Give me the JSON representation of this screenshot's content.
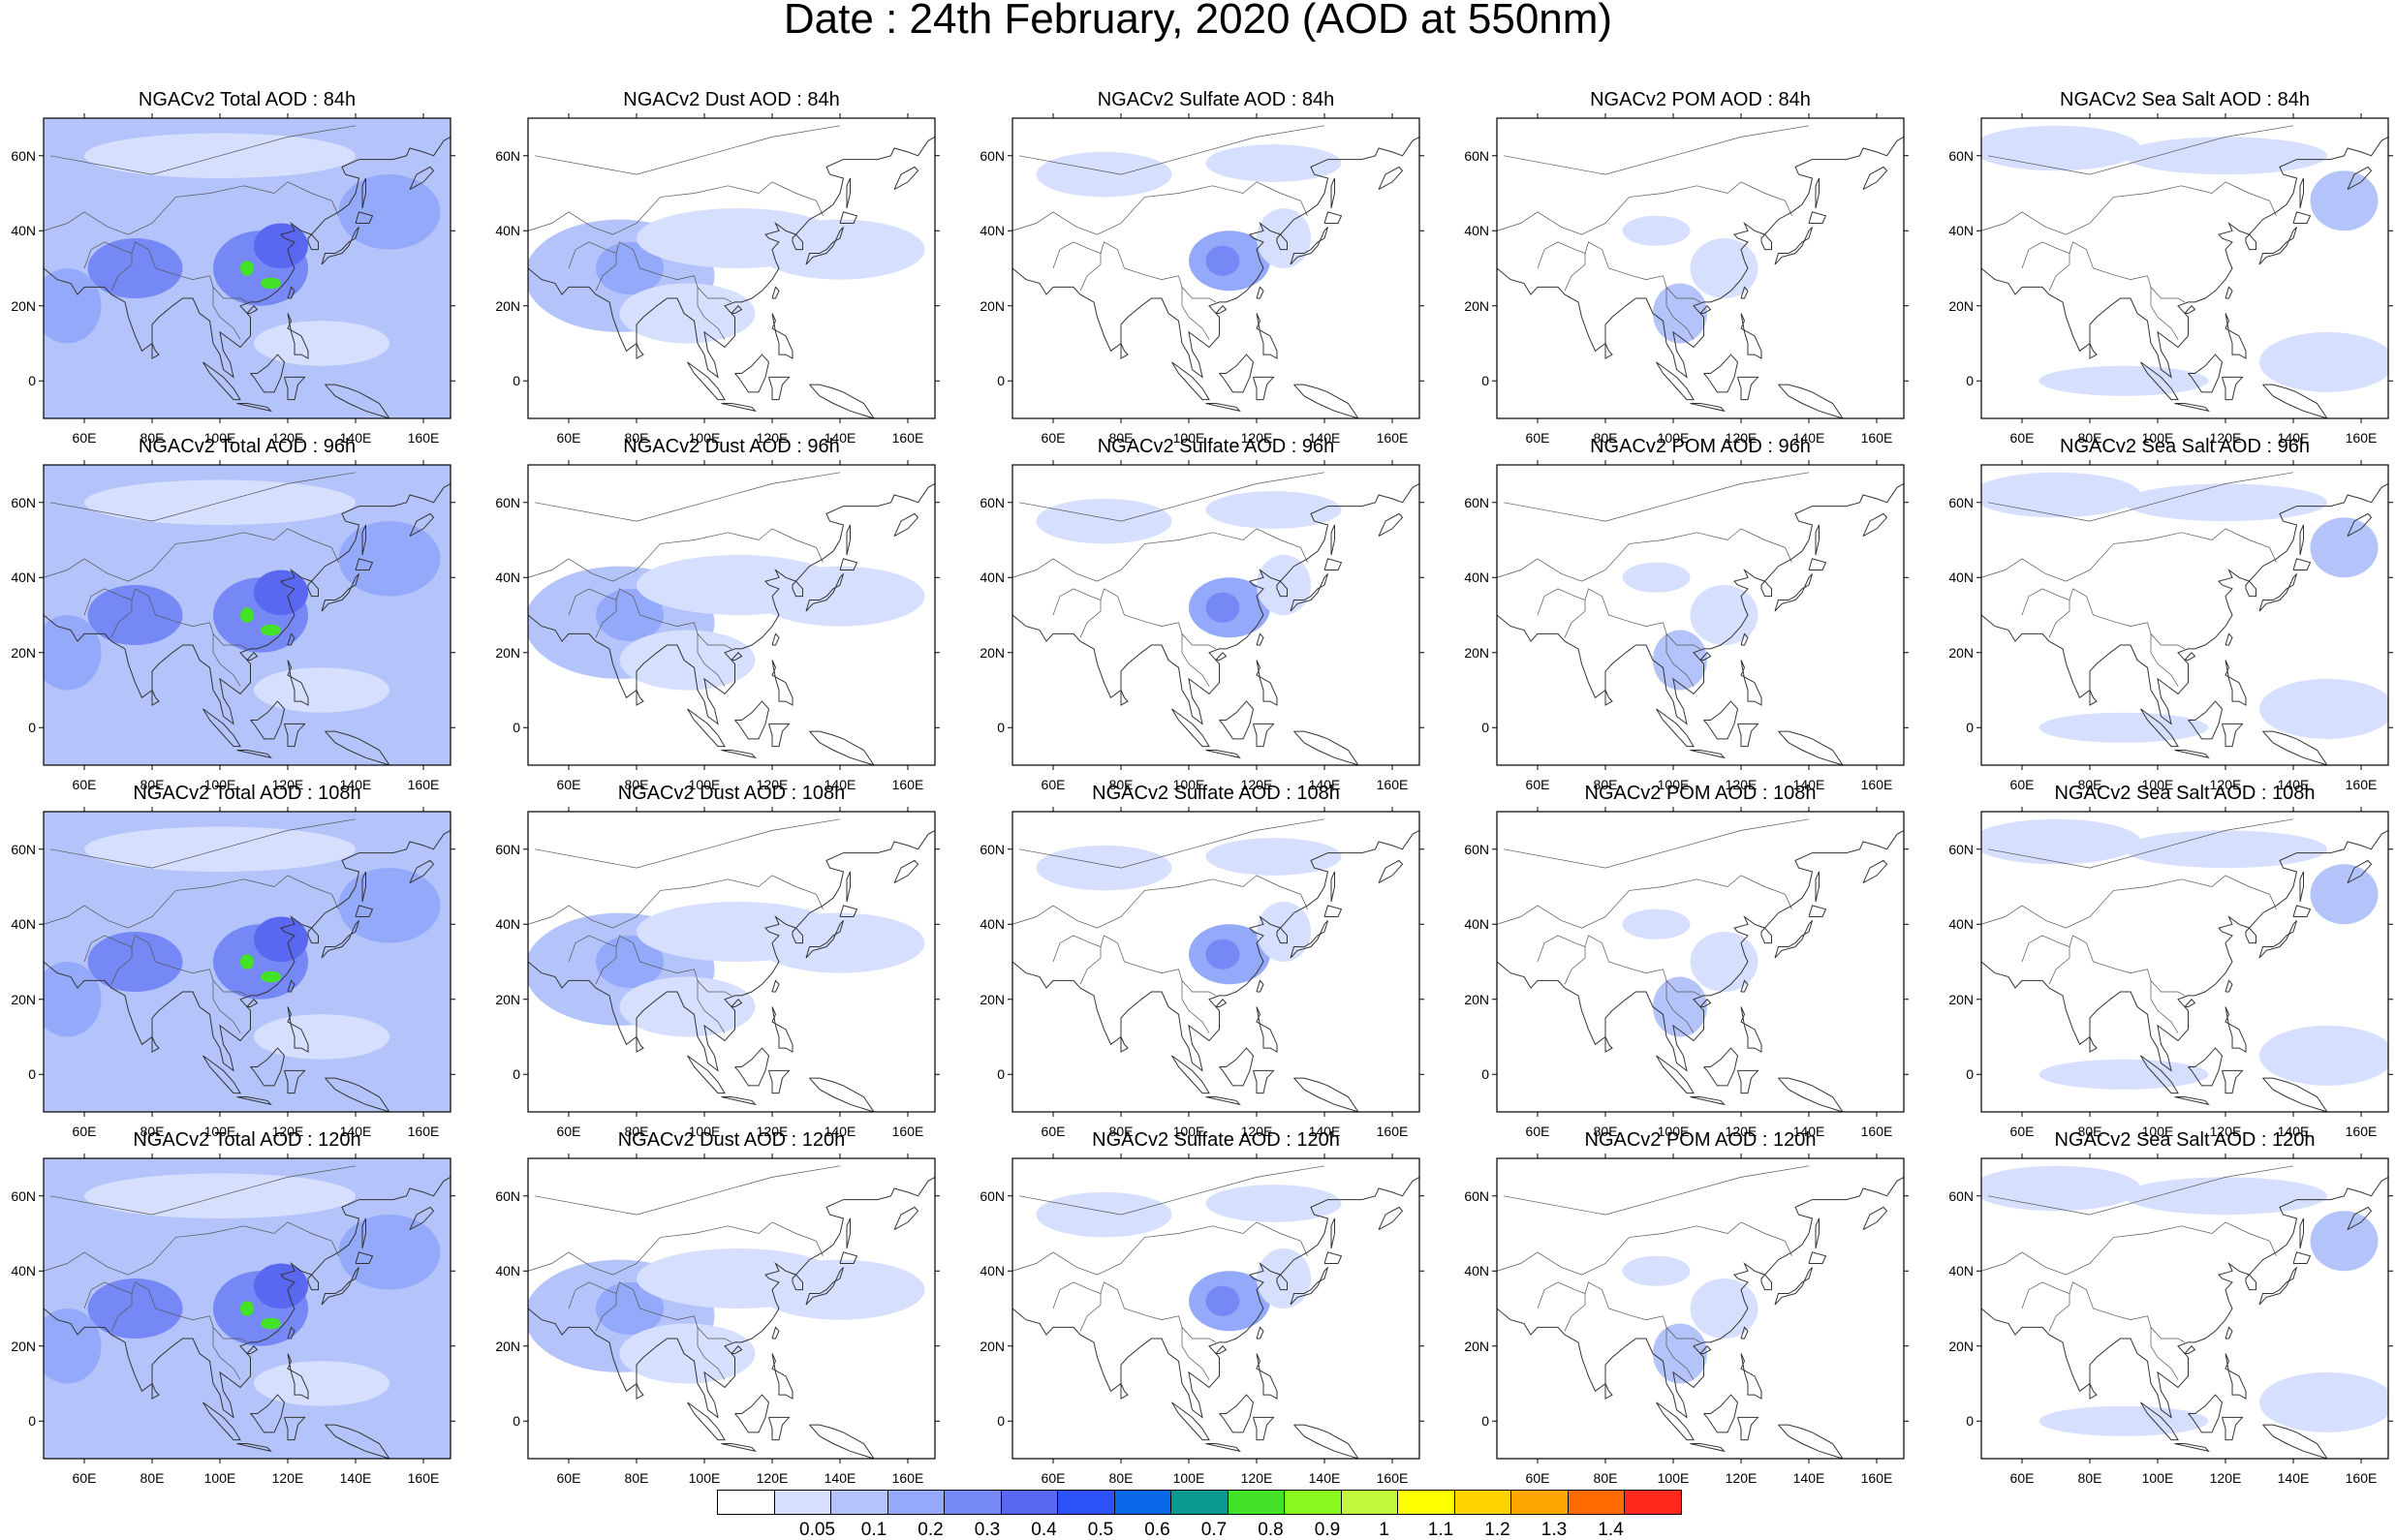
{
  "title": "Date : 24th February, 2020 (AOD at 550nm)",
  "map": {
    "lon_range": [
      48,
      168
    ],
    "lat_range": [
      -10,
      70
    ],
    "lon_ticks": [
      "60E",
      "80E",
      "100E",
      "120E",
      "140E",
      "160E"
    ],
    "lat_ticks": [
      "60N",
      "40N",
      "20N",
      "0"
    ]
  },
  "rows": [
    {
      "lead": "84h",
      "titles": [
        "NGACv2 Total AOD : 84h",
        "NGACv2 Dust AOD : 84h",
        "NGACv2 Sulfate AOD : 84h",
        "NGACv2 POM AOD : 84h",
        "NGACv2 Sea Salt AOD : 84h"
      ]
    },
    {
      "lead": "96h",
      "titles": [
        "NGACv2 Total AOD : 96h",
        "NGACv2 Dust AOD : 96h",
        "NGACv2 Sulfate AOD : 96h",
        "NGACv2 POM AOD : 96h",
        "NGACv2 Sea Salt AOD : 96h"
      ]
    },
    {
      "lead": "108h",
      "titles": [
        "NGACv2 Total AOD : 108h",
        "NGACv2 Dust AOD : 108h",
        "NGACv2 Sulfate AOD : 108h",
        "NGACv2 POM AOD : 108h",
        "NGACv2 Sea Salt AOD : 108h"
      ]
    },
    {
      "lead": "120h",
      "titles": [
        "NGACv2 Total AOD : 120h",
        "NGACv2 Dust AOD : 120h",
        "NGACv2 Sulfate AOD : 120h",
        "NGACv2 POM AOD : 120h",
        "NGACv2 Sea Salt  AOD : 120h"
      ]
    }
  ],
  "colorbar": {
    "colors": [
      "#ffffff",
      "#d6dffd",
      "#b4c4fb",
      "#94a9f9",
      "#7688f5",
      "#5a67f0",
      "#2d52f7",
      "#0968e8",
      "#0a9890",
      "#42e326",
      "#8af71f",
      "#c2f83c",
      "#ffff00",
      "#ffd200",
      "#ffa700",
      "#ff6b00",
      "#ff2a1d"
    ],
    "labels": [
      "0.05",
      "0.1",
      "0.2",
      "0.3",
      "0.4",
      "0.5",
      "0.6",
      "0.7",
      "0.8",
      "0.9",
      "1",
      "1.1",
      "1.2",
      "1.3",
      "1.4"
    ]
  },
  "fields": {
    "total": {
      "background": 2,
      "blobs": [
        {
          "lon": 75,
          "lat": 30,
          "rx": 14,
          "ry": 8,
          "level": 4
        },
        {
          "lon": 112,
          "lat": 30,
          "rx": 14,
          "ry": 10,
          "level": 4
        },
        {
          "lon": 118,
          "lat": 36,
          "rx": 8,
          "ry": 6,
          "level": 5
        },
        {
          "lon": 108,
          "lat": 30,
          "rx": 2,
          "ry": 2,
          "level": 9
        },
        {
          "lon": 115,
          "lat": 26,
          "rx": 3,
          "ry": 1.5,
          "level": 9
        },
        {
          "lon": 150,
          "lat": 45,
          "rx": 15,
          "ry": 10,
          "level": 3
        },
        {
          "lon": 55,
          "lat": 20,
          "rx": 10,
          "ry": 10,
          "level": 3
        },
        {
          "lon": 100,
          "lat": 60,
          "rx": 40,
          "ry": 6,
          "level": 1
        },
        {
          "lon": 130,
          "lat": 10,
          "rx": 20,
          "ry": 6,
          "level": 1
        }
      ]
    },
    "dust": {
      "background": 0,
      "blobs": [
        {
          "lon": 75,
          "lat": 28,
          "rx": 28,
          "ry": 15,
          "level": 2
        },
        {
          "lon": 78,
          "lat": 30,
          "rx": 10,
          "ry": 7,
          "level": 3
        },
        {
          "lon": 110,
          "lat": 38,
          "rx": 30,
          "ry": 8,
          "level": 1
        },
        {
          "lon": 140,
          "lat": 35,
          "rx": 25,
          "ry": 8,
          "level": 1
        },
        {
          "lon": 95,
          "lat": 18,
          "rx": 20,
          "ry": 8,
          "level": 1
        }
      ]
    },
    "sulfate": {
      "background": 0,
      "blobs": [
        {
          "lon": 112,
          "lat": 32,
          "rx": 12,
          "ry": 8,
          "level": 3
        },
        {
          "lon": 110,
          "lat": 32,
          "rx": 5,
          "ry": 4,
          "level": 4
        },
        {
          "lon": 75,
          "lat": 55,
          "rx": 20,
          "ry": 6,
          "level": 1
        },
        {
          "lon": 125,
          "lat": 58,
          "rx": 20,
          "ry": 5,
          "level": 1
        },
        {
          "lon": 128,
          "lat": 38,
          "rx": 8,
          "ry": 8,
          "level": 1
        }
      ]
    },
    "pom": {
      "background": 0,
      "blobs": [
        {
          "lon": 102,
          "lat": 18,
          "rx": 8,
          "ry": 8,
          "level": 2
        },
        {
          "lon": 115,
          "lat": 30,
          "rx": 10,
          "ry": 8,
          "level": 1
        },
        {
          "lon": 95,
          "lat": 40,
          "rx": 10,
          "ry": 4,
          "level": 1
        }
      ]
    },
    "seasalt": {
      "background": 0,
      "blobs": [
        {
          "lon": 70,
          "lat": 62,
          "rx": 25,
          "ry": 6,
          "level": 1
        },
        {
          "lon": 155,
          "lat": 48,
          "rx": 10,
          "ry": 8,
          "level": 2
        },
        {
          "lon": 150,
          "lat": 5,
          "rx": 20,
          "ry": 8,
          "level": 1
        },
        {
          "lon": 120,
          "lat": 60,
          "rx": 30,
          "ry": 5,
          "level": 1
        },
        {
          "lon": 90,
          "lat": 0,
          "rx": 25,
          "ry": 4,
          "level": 1
        }
      ]
    }
  }
}
